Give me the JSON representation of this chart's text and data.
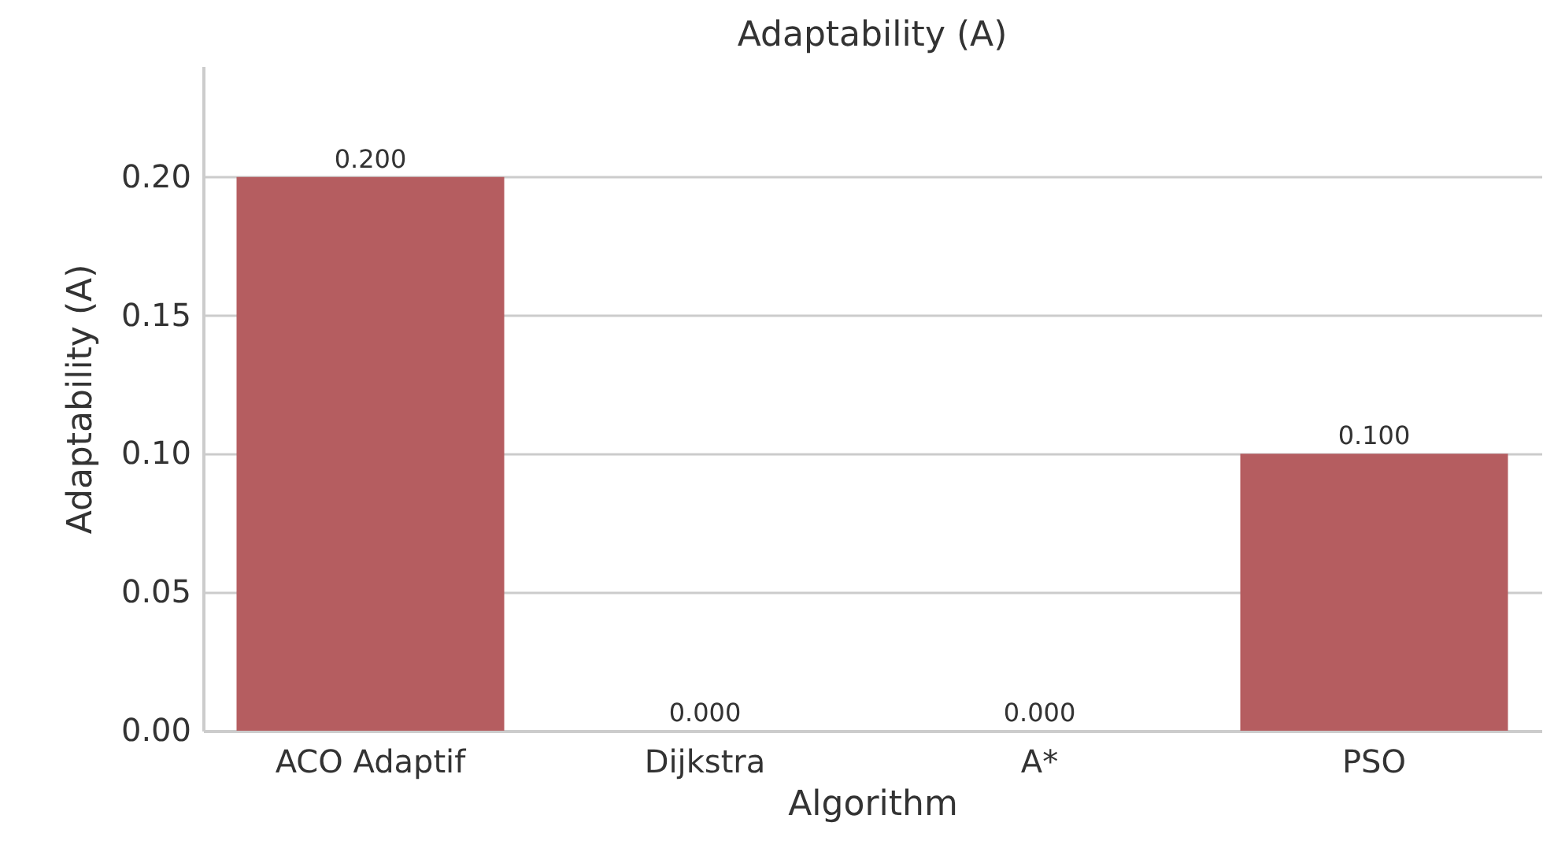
{
  "chart_data": {
    "type": "bar",
    "title": "Adaptability (A)",
    "xlabel": "Algorithm",
    "ylabel": "Adaptability (A)",
    "categories": [
      "ACO Adaptif",
      "Dijkstra",
      "A*",
      "PSO"
    ],
    "values": [
      0.2,
      0,
      0,
      0.1
    ],
    "value_labels": [
      "0.200",
      "0.000",
      "0.000",
      "0.100"
    ],
    "color": "#b55d60",
    "ylim": [
      0,
      0.24
    ],
    "yticks": [
      {
        "value": 0,
        "label": "0.00"
      },
      {
        "value": 0.05,
        "label": "0.05"
      },
      {
        "value": 0.1,
        "label": "0.10"
      },
      {
        "value": 0.15,
        "label": "0.15"
      },
      {
        "value": 0.2,
        "label": "0.20"
      }
    ],
    "grid": "y"
  }
}
